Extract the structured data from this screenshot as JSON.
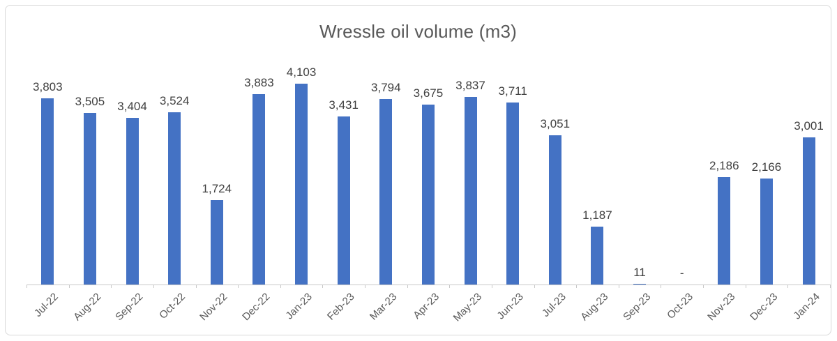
{
  "title": "Wressle oil volume (m3)",
  "chart_data": {
    "type": "bar",
    "title": "Wressle oil volume (m3)",
    "xlabel": "",
    "ylabel": "",
    "categories": [
      "Jul-22",
      "Aug-22",
      "Sep-22",
      "Oct-22",
      "Nov-22",
      "Dec-22",
      "Jan-23",
      "Feb-23",
      "Mar-23",
      "Apr-23",
      "May-23",
      "Jun-23",
      "Jul-23",
      "Aug-23",
      "Sep-23",
      "Oct-23",
      "Nov-23",
      "Dec-23",
      "Jan-24"
    ],
    "values": [
      3803,
      3505,
      3404,
      3524,
      1724,
      3883,
      4103,
      3431,
      3794,
      3675,
      3837,
      3711,
      3051,
      1187,
      11,
      null,
      2186,
      2166,
      3001
    ],
    "data_labels": [
      "3,803",
      "3,505",
      "3,404",
      "3,524",
      "1,724",
      "3,883",
      "4,103",
      "3,431",
      "3,794",
      "3,675",
      "3,837",
      "3,711",
      "3,051",
      "1,187",
      "11",
      "-",
      "2,186",
      "2,166",
      "3,001"
    ],
    "ylim": [
      0,
      4500
    ],
    "grid": false,
    "legend": false,
    "y_axis_visible": false,
    "bar_color": "#4472c4",
    "title_color": "#595959",
    "data_label_color": "#404040",
    "axis_color": "#c8c8c8",
    "x_label_rotation_deg": -45
  }
}
